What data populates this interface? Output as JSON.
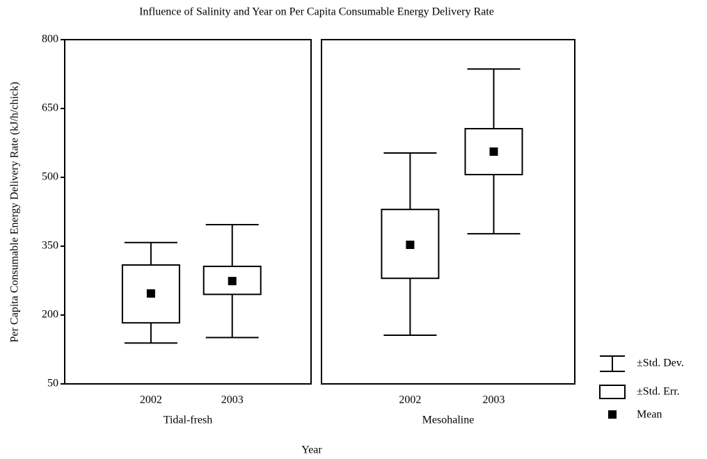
{
  "chart_data": {
    "type": "box",
    "title": "Influence of Salinity and Year on Per Capita Consumable Energy Delivery Rate",
    "y_label": "Per Capita Consumable Energy Delivery Rate (kJ/h/chick)",
    "x_label": "Year",
    "ylim": [
      50,
      800
    ],
    "yticks": [
      50,
      200,
      350,
      500,
      650,
      800
    ],
    "color": "#000000",
    "legend": {
      "sd": "±Std. Dev.",
      "se": "±Std. Err.",
      "mean": "Mean"
    },
    "panels": [
      {
        "name": "Tidal-fresh",
        "categories": [
          "2002",
          "2003"
        ],
        "mean": [
          247,
          274
        ],
        "se_low": [
          183,
          245
        ],
        "se_high": [
          309,
          306
        ],
        "sd_low": [
          139,
          151
        ],
        "sd_high": [
          358,
          397
        ]
      },
      {
        "name": "Mesohaline",
        "categories": [
          "2002",
          "2003"
        ],
        "mean": [
          353,
          556
        ],
        "se_low": [
          280,
          506
        ],
        "se_high": [
          430,
          606
        ],
        "sd_low": [
          156,
          377
        ],
        "sd_high": [
          553,
          736
        ]
      }
    ]
  }
}
